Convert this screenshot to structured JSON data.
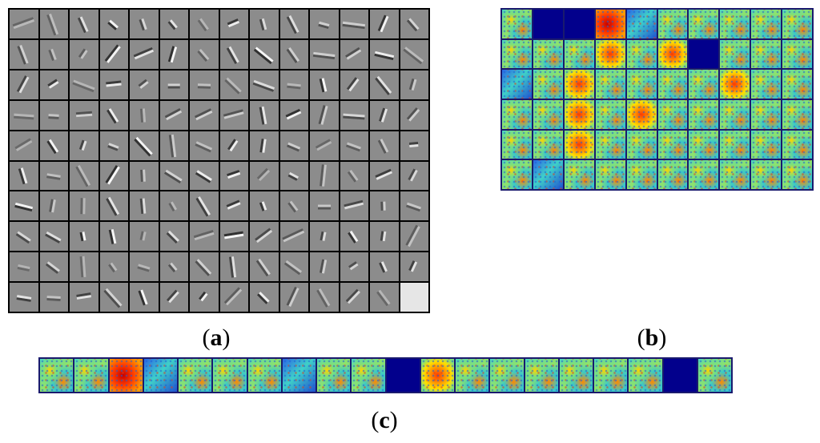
{
  "figure": {
    "panels": [
      {
        "id": "a",
        "label_open": "(",
        "label_letter": "a",
        "label_close": ")",
        "grid_columns": 14,
        "grid_rows": 10,
        "style": "grayscale-filters",
        "light_cells": [
          139
        ]
      },
      {
        "id": "b",
        "label_open": "(",
        "label_letter": "b",
        "label_close": ")",
        "grid_columns": 10,
        "grid_rows": 6,
        "style": "jet-colormap-filters",
        "dark_cells": [
          1,
          2,
          16
        ],
        "hot_cells": [
          3
        ]
      },
      {
        "id": "c",
        "label_open": "(",
        "label_letter": "c",
        "label_close": ")",
        "grid_columns": 20,
        "grid_rows": 1,
        "style": "jet-colormap-filters",
        "dark_cells": [
          10,
          18
        ],
        "hot_cells": [
          2
        ]
      }
    ],
    "colors": {
      "gray_tile": "#8c8c8c",
      "border_dark": "#000000",
      "border_blue": "#1a1a6e",
      "dark_blue_tile": "#02008c"
    }
  }
}
